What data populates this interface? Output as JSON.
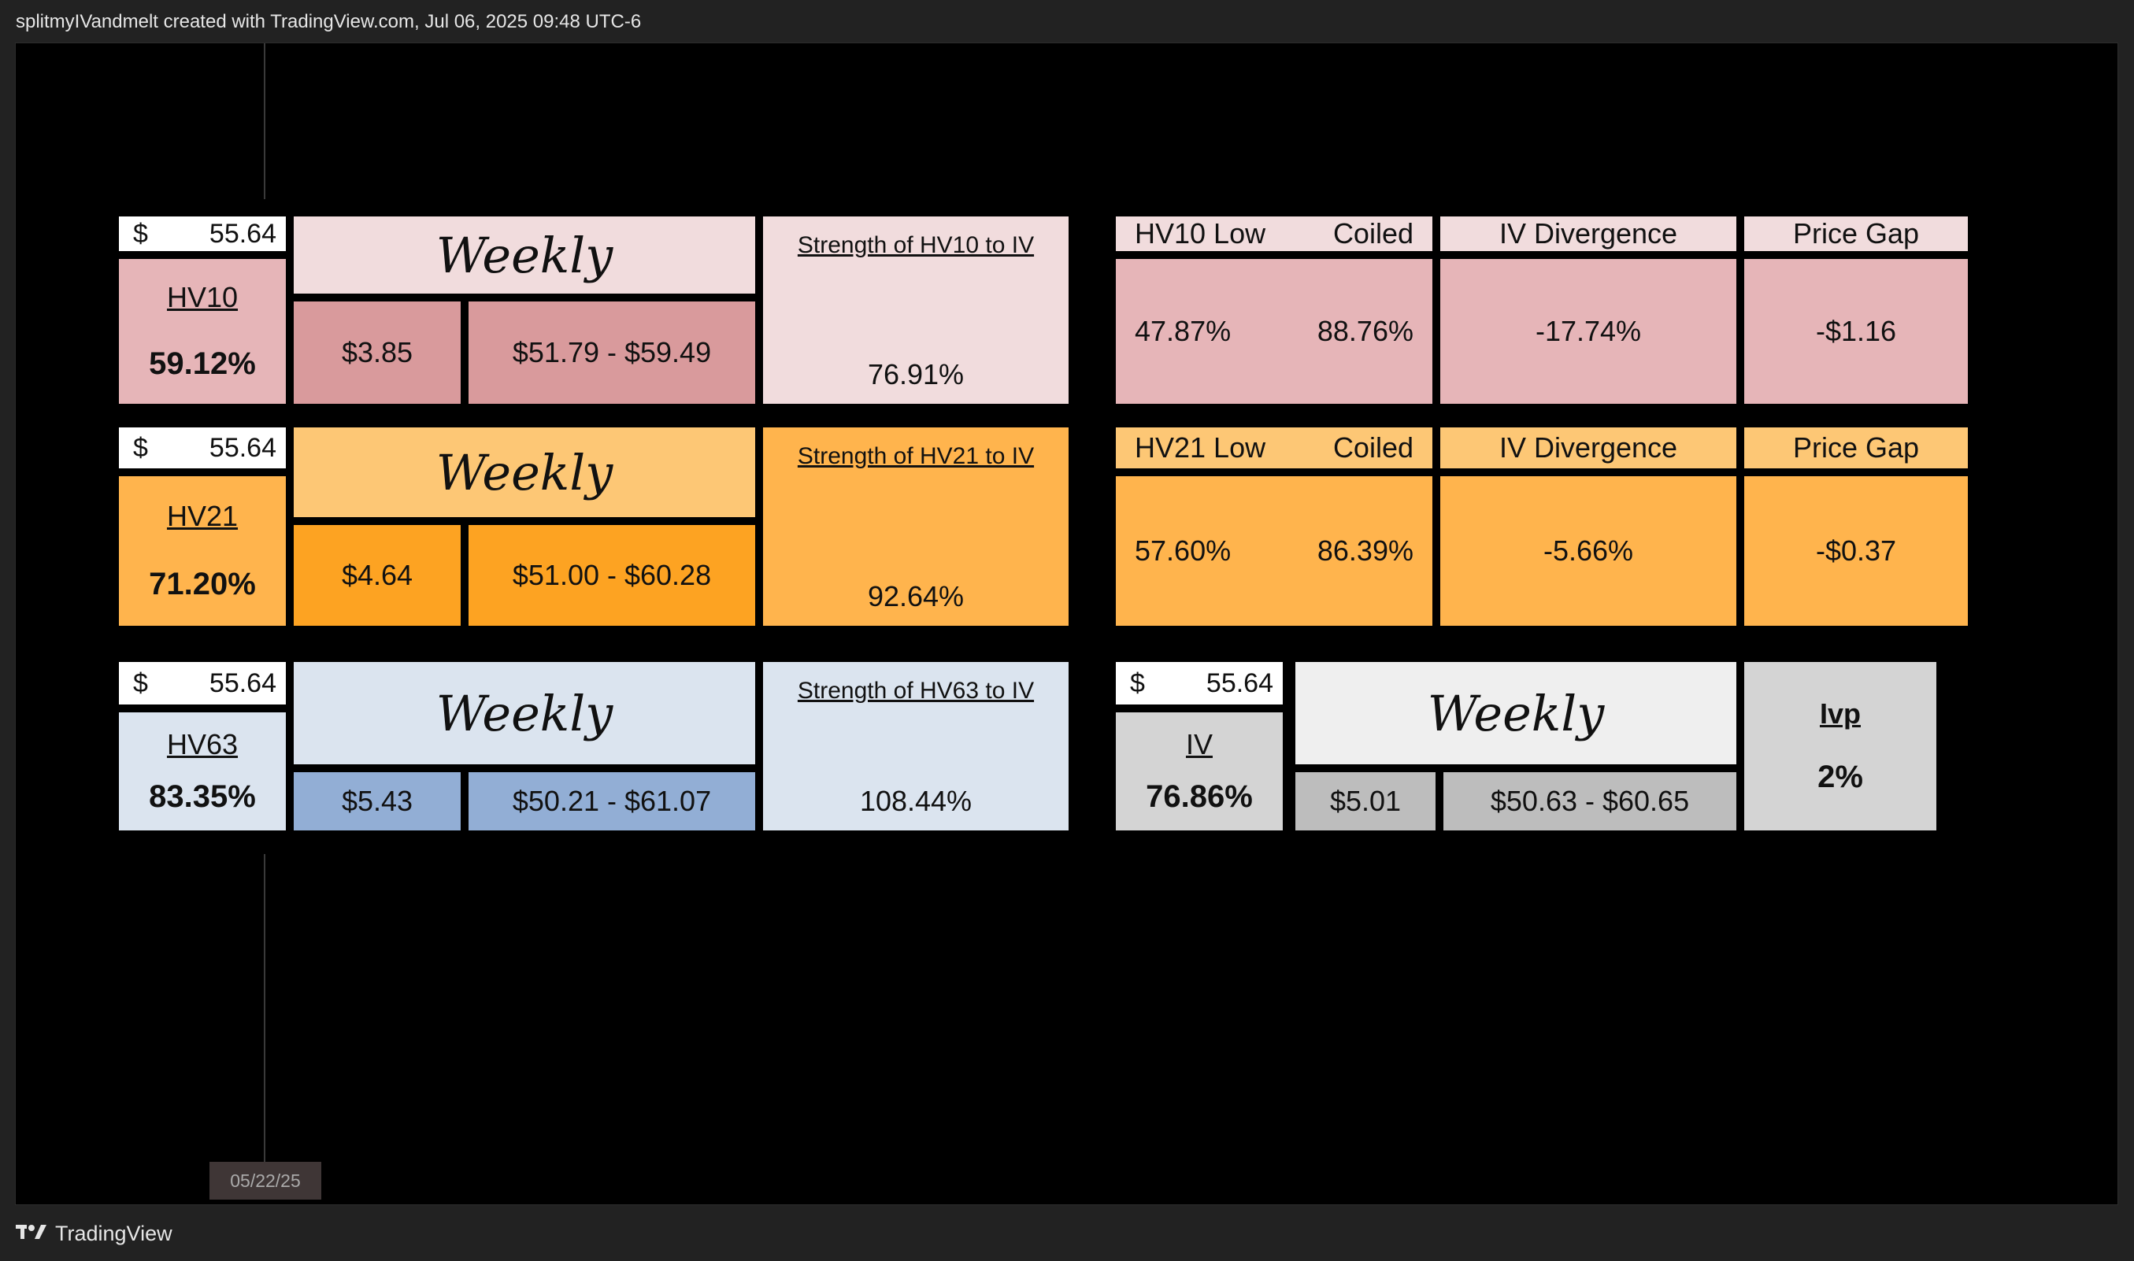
{
  "header": {
    "attribution": "splitmyIVandmelt created with TradingView.com, Jul 06, 2025 09:48 UTC-6"
  },
  "footer": {
    "brand": "TradingView"
  },
  "chart": {
    "date_label": "05/22/25"
  },
  "panels": {
    "hv10": {
      "price_symbol": "$",
      "price": "55.64",
      "hv_label": "HV10",
      "hv_value": "59.12%",
      "weekly_label": "Weekly",
      "weekly_move": "$3.85",
      "weekly_range": "$51.79 - $59.49",
      "strength_title": "Strength of HV10 to IV",
      "strength_value": "76.91%",
      "low_label": "HV10 Low",
      "coiled_label": "Coiled",
      "low_value": "47.87%",
      "coiled_value": "88.76%",
      "divergence_label": "IV Divergence",
      "divergence_value": "-17.74%",
      "gap_label": "Price Gap",
      "gap_value": "-$1.16"
    },
    "hv21": {
      "price_symbol": "$",
      "price": "55.64",
      "hv_label": "HV21",
      "hv_value": "71.20%",
      "weekly_label": "Weekly",
      "weekly_move": "$4.64",
      "weekly_range": "$51.00 - $60.28",
      "strength_title": "Strength of HV21 to IV",
      "strength_value": "92.64%",
      "low_label": "HV21 Low",
      "coiled_label": "Coiled",
      "low_value": "57.60%",
      "coiled_value": "86.39%",
      "divergence_label": "IV Divergence",
      "divergence_value": "-5.66%",
      "gap_label": "Price Gap",
      "gap_value": "-$0.37"
    },
    "hv63": {
      "price_symbol": "$",
      "price": "55.64",
      "hv_label": "HV63",
      "hv_value": "83.35%",
      "weekly_label": "Weekly",
      "weekly_move": "$5.43",
      "weekly_range": "$50.21 - $61.07",
      "strength_title": "Strength of HV63 to IV",
      "strength_value": "108.44%"
    },
    "iv": {
      "price_symbol": "$",
      "price": "55.64",
      "iv_label": "IV",
      "iv_value": "76.86%",
      "weekly_label": "Weekly",
      "weekly_move": "$5.01",
      "weekly_range": "$50.63 - $60.65",
      "ivp_label": "Ivp",
      "ivp_value": "2%"
    }
  },
  "colors": {
    "hv10_light": "#f1dcdd",
    "hv10_mid": "#e6b5b8",
    "hv10_dark": "#d99a9c",
    "hv21_light": "#fdc775",
    "hv21_mid": "#ffb44d",
    "hv21_dark": "#fda322",
    "hv63_light": "#dbe4ef",
    "hv63_dark": "#92aed5",
    "iv_light": "#efefef",
    "iv_mid": "#d4d4d4",
    "iv_dark": "#bdbdbd"
  }
}
